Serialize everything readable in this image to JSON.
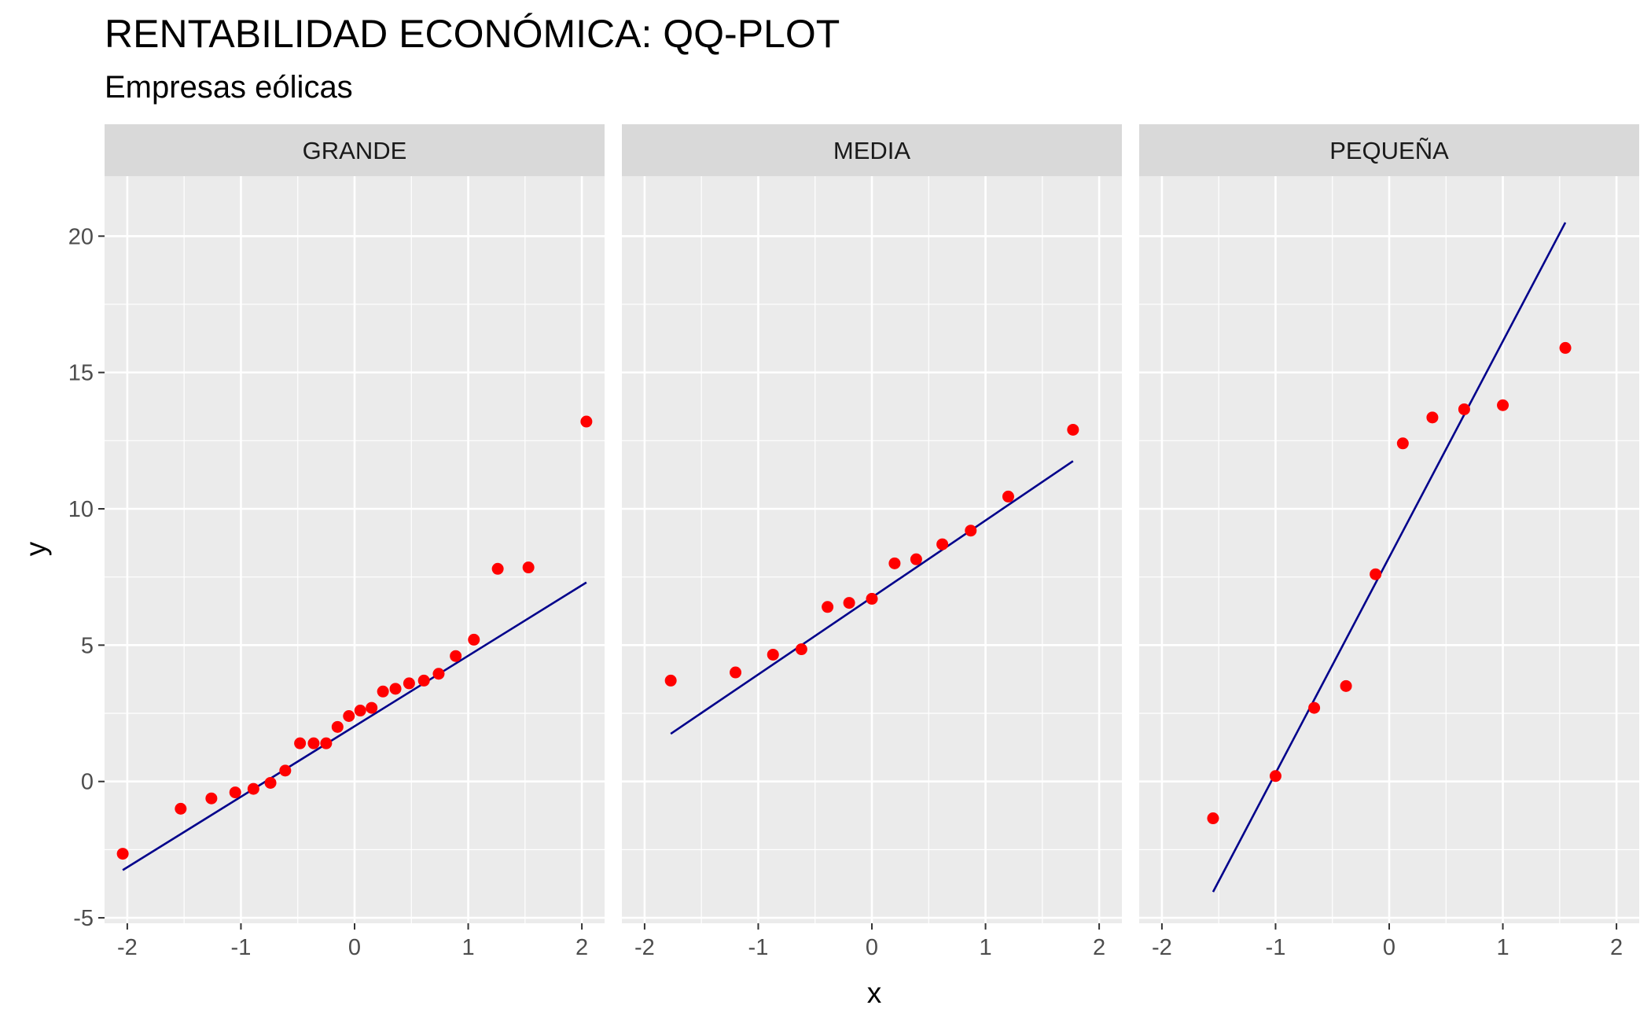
{
  "chart_data": {
    "type": "scatter",
    "title": "RENTABILIDAD ECONÓMICA: QQ-PLOT",
    "subtitle": "Empresas eólicas",
    "xlabel": "x",
    "ylabel": "y",
    "xlim": [
      -2.2,
      2.2
    ],
    "ylim": [
      -5.2,
      22.2
    ],
    "x_ticks": [
      -2,
      -1,
      0,
      1,
      2
    ],
    "x_tick_labels": [
      "-2",
      "-1",
      "0",
      "1",
      "2"
    ],
    "y_ticks": [
      -5,
      0,
      5,
      10,
      15,
      20
    ],
    "y_tick_labels": [
      "-5",
      "0",
      "5",
      "10",
      "15",
      "20"
    ],
    "grid": true,
    "colors": {
      "points": "#ff0000",
      "line": "#00008b",
      "panel_bg": "#ebebeb",
      "strip_bg": "#d9d9d9",
      "grid": "#ffffff"
    },
    "facets": [
      {
        "name": "GRANDE",
        "points": [
          {
            "x": -2.04,
            "y": -2.65
          },
          {
            "x": -1.53,
            "y": -1.0
          },
          {
            "x": -1.26,
            "y": -0.62
          },
          {
            "x": -1.05,
            "y": -0.4
          },
          {
            "x": -0.89,
            "y": -0.27
          },
          {
            "x": -0.74,
            "y": -0.05
          },
          {
            "x": -0.61,
            "y": 0.4
          },
          {
            "x": -0.48,
            "y": 1.4
          },
          {
            "x": -0.36,
            "y": 1.4
          },
          {
            "x": -0.25,
            "y": 1.4
          },
          {
            "x": -0.15,
            "y": 2.0
          },
          {
            "x": -0.05,
            "y": 2.4
          },
          {
            "x": 0.05,
            "y": 2.6
          },
          {
            "x": 0.15,
            "y": 2.7
          },
          {
            "x": 0.25,
            "y": 3.3
          },
          {
            "x": 0.36,
            "y": 3.4
          },
          {
            "x": 0.48,
            "y": 3.6
          },
          {
            "x": 0.61,
            "y": 3.7
          },
          {
            "x": 0.74,
            "y": 3.95
          },
          {
            "x": 0.89,
            "y": 4.6
          },
          {
            "x": 1.05,
            "y": 5.2
          },
          {
            "x": 1.26,
            "y": 7.8
          },
          {
            "x": 1.53,
            "y": 7.85
          },
          {
            "x": 2.04,
            "y": 13.2
          }
        ],
        "line": [
          {
            "x": -2.04,
            "y": -3.25
          },
          {
            "x": 2.04,
            "y": 7.3
          }
        ]
      },
      {
        "name": "MEDIA",
        "points": [
          {
            "x": -1.77,
            "y": 3.7
          },
          {
            "x": -1.2,
            "y": 4.0
          },
          {
            "x": -0.87,
            "y": 4.65
          },
          {
            "x": -0.62,
            "y": 4.85
          },
          {
            "x": -0.39,
            "y": 6.4
          },
          {
            "x": -0.2,
            "y": 6.55
          },
          {
            "x": 0.0,
            "y": 6.7
          },
          {
            "x": 0.2,
            "y": 8.0
          },
          {
            "x": 0.39,
            "y": 8.15
          },
          {
            "x": 0.62,
            "y": 8.7
          },
          {
            "x": 0.87,
            "y": 9.2
          },
          {
            "x": 1.2,
            "y": 10.45
          },
          {
            "x": 1.77,
            "y": 12.9
          }
        ],
        "line": [
          {
            "x": -1.77,
            "y": 1.75
          },
          {
            "x": 1.77,
            "y": 11.75
          }
        ]
      },
      {
        "name": "PEQUEÑA",
        "points": [
          {
            "x": -1.55,
            "y": -1.35
          },
          {
            "x": -1.0,
            "y": 0.2
          },
          {
            "x": -0.66,
            "y": 2.7
          },
          {
            "x": -0.38,
            "y": 3.5
          },
          {
            "x": -0.12,
            "y": 7.6
          },
          {
            "x": 0.12,
            "y": 12.4
          },
          {
            "x": 0.38,
            "y": 13.35
          },
          {
            "x": 0.66,
            "y": 13.65
          },
          {
            "x": 1.0,
            "y": 13.8
          },
          {
            "x": 1.55,
            "y": 15.9
          }
        ],
        "line": [
          {
            "x": -1.55,
            "y": -4.05
          },
          {
            "x": 1.55,
            "y": 20.5
          }
        ]
      }
    ]
  }
}
